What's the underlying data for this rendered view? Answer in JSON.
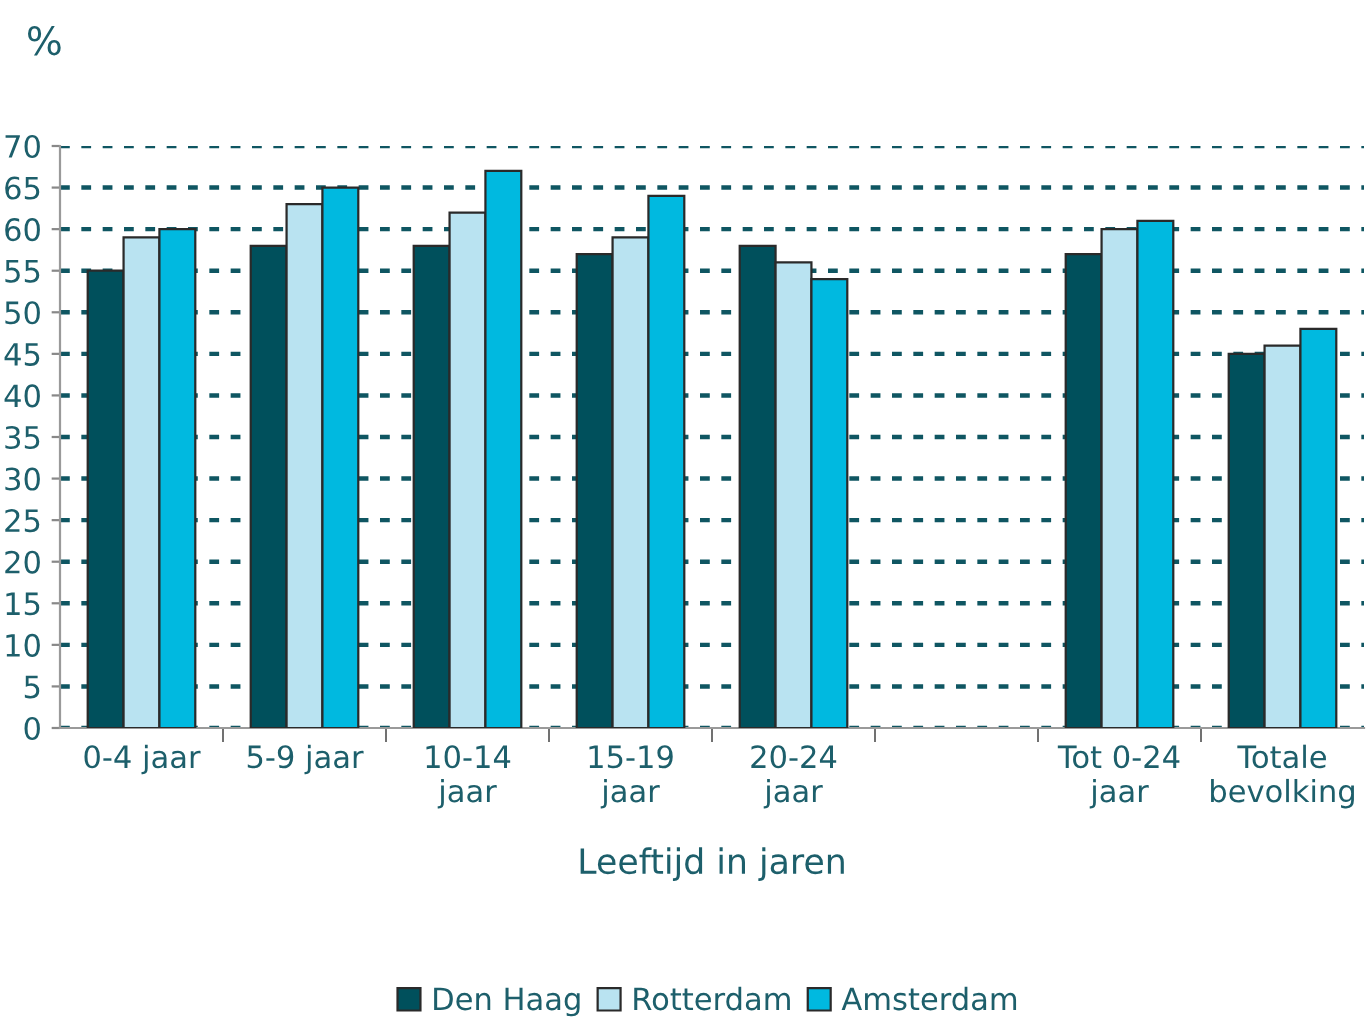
{
  "chart_data": {
    "type": "bar",
    "ylabel": "%",
    "xlabel": "Leeftijd in jaren",
    "categories": [
      "0-4 jaar",
      "5-9 jaar",
      "10-14 jaar",
      "15-19 jaar",
      "20-24 jaar",
      null,
      "Tot 0-24 jaar",
      "Totale bevolking"
    ],
    "series": [
      {
        "name": "Den Haag",
        "color": "#00505c",
        "values": [
          55,
          58,
          58,
          57,
          58,
          null,
          57,
          45
        ]
      },
      {
        "name": "Rotterdam",
        "color": "#b9e3f1",
        "values": [
          59,
          63,
          62,
          59,
          56,
          null,
          60,
          46
        ]
      },
      {
        "name": "Amsterdam",
        "color": "#00b9e0",
        "values": [
          60,
          65,
          67,
          64,
          54,
          null,
          61,
          48
        ]
      }
    ],
    "ylim": [
      0,
      70
    ],
    "yticks": [
      0,
      5,
      10,
      15,
      20,
      25,
      30,
      35,
      40,
      45,
      50,
      55,
      60,
      65,
      70
    ],
    "grid": "y",
    "legend": "bottom"
  }
}
